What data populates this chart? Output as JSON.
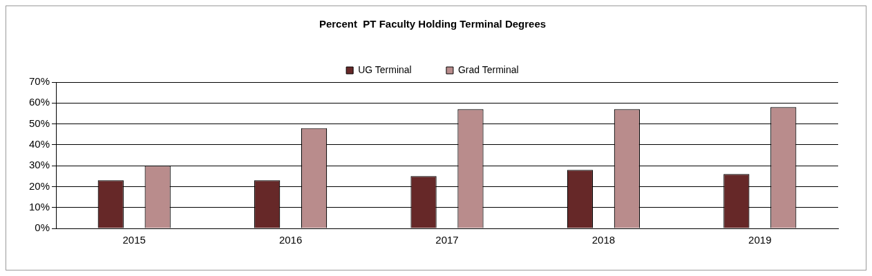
{
  "chart_data": {
    "type": "bar",
    "title": "Percent  PT Faculty Holding Terminal Degrees",
    "categories": [
      "2015",
      "2016",
      "2017",
      "2018",
      "2019"
    ],
    "series": [
      {
        "name": "UG Terminal",
        "color": "#662828",
        "values": [
          23,
          23,
          25,
          28,
          26
        ]
      },
      {
        "name": "Grad Terminal",
        "color": "#b98c8c",
        "values": [
          30,
          48,
          57,
          57,
          58
        ]
      }
    ],
    "ylim": [
      0,
      70
    ],
    "yticks": [
      {
        "value": 0,
        "label": "0%"
      },
      {
        "value": 10,
        "label": "10%"
      },
      {
        "value": 20,
        "label": "20%"
      },
      {
        "value": 30,
        "label": "30%"
      },
      {
        "value": 40,
        "label": "40%"
      },
      {
        "value": 50,
        "label": "50%"
      },
      {
        "value": 60,
        "label": "60%"
      },
      {
        "value": 70,
        "label": "70%"
      }
    ],
    "grid": "y",
    "legend": "top"
  }
}
